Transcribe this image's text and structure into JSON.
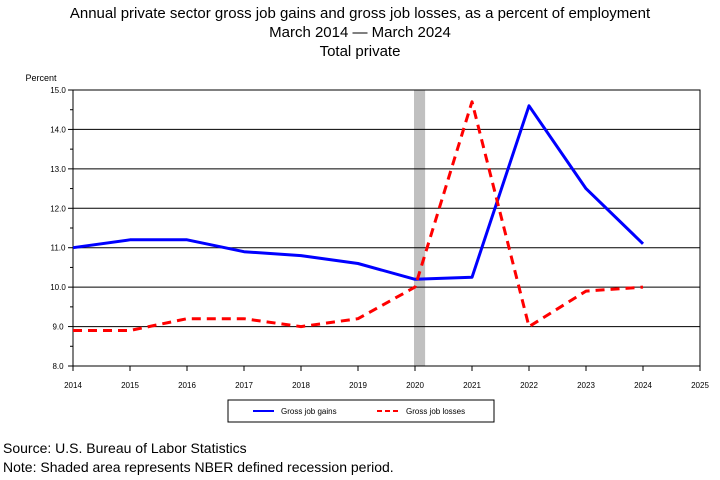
{
  "title": {
    "line1": "Annual private sector gross job gains and gross job losses, as a percent of employment",
    "line2": "March 2014  — March 2024",
    "line3": "Total private"
  },
  "chart_data": {
    "type": "line",
    "ylabel": "Percent",
    "xlim": [
      2014,
      2025
    ],
    "ylim": [
      8.0,
      15.0
    ],
    "x_ticks": [
      "2014",
      "2015",
      "2016",
      "2017",
      "2018",
      "2019",
      "2020",
      "2021",
      "2022",
      "2023",
      "2024",
      "2025"
    ],
    "y_ticks": [
      "8.0",
      "9.0",
      "10.0",
      "11.0",
      "12.0",
      "13.0",
      "14.0",
      "15.0"
    ],
    "grid": true,
    "legend_position": "bottom",
    "recession_shading": {
      "start": 2020.0,
      "end": 2020.16,
      "color": "#c0c0c0"
    },
    "series": [
      {
        "name": "Gross job gains",
        "color": "#0000ff",
        "style": "solid",
        "x": [
          2014,
          2015,
          2016,
          2017,
          2018,
          2019,
          2020,
          2021,
          2022,
          2023,
          2024
        ],
        "values": [
          11.0,
          11.2,
          11.2,
          10.9,
          10.8,
          10.6,
          10.2,
          10.25,
          14.6,
          12.5,
          11.1
        ]
      },
      {
        "name": "Gross job losses",
        "color": "#ff0000",
        "style": "dashed",
        "x": [
          2014,
          2015,
          2016,
          2017,
          2018,
          2019,
          2020,
          2021,
          2022,
          2023,
          2024
        ],
        "values": [
          8.9,
          8.9,
          9.2,
          9.2,
          9.0,
          9.2,
          10.0,
          14.7,
          9.0,
          9.9,
          10.0
        ]
      }
    ]
  },
  "footer": {
    "source": "Source: U.S. Bureau of Labor Statistics",
    "note": "Note: Shaded area represents NBER defined recession period."
  }
}
